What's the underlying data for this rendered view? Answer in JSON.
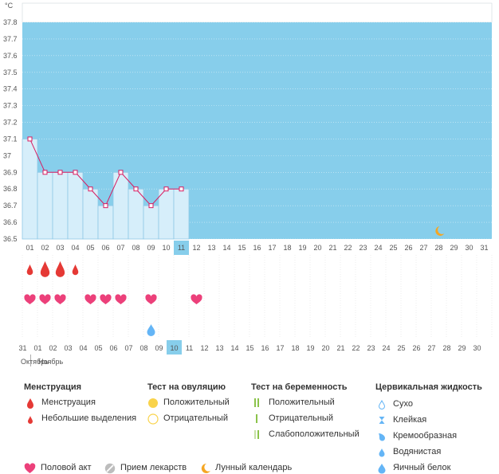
{
  "colors": {
    "sky": "#87CEEB",
    "bar_fill": "#D6EEFA",
    "bar_edge": "#8FC8E6",
    "line": "#D81B60",
    "weekend_day": "#D81B60",
    "today_highlight": "#87CEEB",
    "menstruation": "#E53935",
    "heart": "#EC407A",
    "drop": "#64B5F6",
    "moon": "#F5A623",
    "ovulation_positive": "#F9D34B",
    "ovulation_negative": "#F9D34B",
    "pregnancy": "#8BC34A",
    "pill": "#9E9E9E"
  },
  "chart_data": {
    "type": "line",
    "y_unit": "°C",
    "ylim": [
      36.5,
      37.8
    ],
    "y_ticks": [
      "36.5",
      "36.6",
      "36.7",
      "36.8",
      "36.9",
      "37",
      "37.1",
      "37.2",
      "37.3",
      "37.4",
      "37.5",
      "37.6",
      "37.7",
      "37.8"
    ],
    "x_categories": [
      "01",
      "02",
      "03",
      "04",
      "05",
      "06",
      "07",
      "08",
      "09",
      "10",
      "11",
      "12",
      "13",
      "14",
      "15",
      "16",
      "17",
      "18",
      "19",
      "20",
      "21",
      "22",
      "23",
      "24",
      "25",
      "26",
      "27",
      "28",
      "29",
      "30",
      "31"
    ],
    "temperatures": [
      37.1,
      36.9,
      36.9,
      36.9,
      36.8,
      36.7,
      36.9,
      36.8,
      36.7,
      36.8,
      36.8
    ],
    "current_index": 10,
    "moon_index": 27
  },
  "markers": {
    "menstruation": [
      {
        "index": 0,
        "size": "small"
      },
      {
        "index": 1,
        "size": "large"
      },
      {
        "index": 2,
        "size": "large"
      },
      {
        "index": 3,
        "size": "small"
      }
    ],
    "hearts": [
      0,
      1,
      2,
      4,
      5,
      6,
      8,
      11
    ],
    "fluid_drops": [
      8
    ]
  },
  "calendar": {
    "days": [
      "31",
      "01",
      "02",
      "03",
      "04",
      "05",
      "06",
      "07",
      "08",
      "09",
      "10",
      "11",
      "12",
      "13",
      "14",
      "15",
      "16",
      "17",
      "18",
      "19",
      "20",
      "21",
      "22",
      "23",
      "24",
      "25",
      "26",
      "27",
      "28",
      "29",
      "30"
    ],
    "red_indices": [
      0,
      1,
      7,
      8,
      13,
      14,
      20,
      21,
      27,
      28
    ],
    "today_index": 10,
    "month_prev": "Октябрь",
    "month_next": "Ноябрь"
  },
  "legend": {
    "menstruation": {
      "title": "Менструация",
      "items": [
        "Менструация",
        "Небольшие выделения"
      ]
    },
    "ovulation": {
      "title": "Тест на овуляцию",
      "items": [
        "Положительный",
        "Отрицательный"
      ]
    },
    "pregnancy": {
      "title": "Тест на беременность",
      "items": [
        "Положительный",
        "Отрицательный",
        "Слабоположительный"
      ]
    },
    "cervical": {
      "title": "Цервикальная жидкость",
      "items": [
        "Сухо",
        "Клейкая",
        "Кремообразная",
        "Водянистая",
        "Яичный белок"
      ]
    },
    "bottom": [
      "Половой акт",
      "Прием лекарств",
      "Лунный календарь"
    ]
  }
}
